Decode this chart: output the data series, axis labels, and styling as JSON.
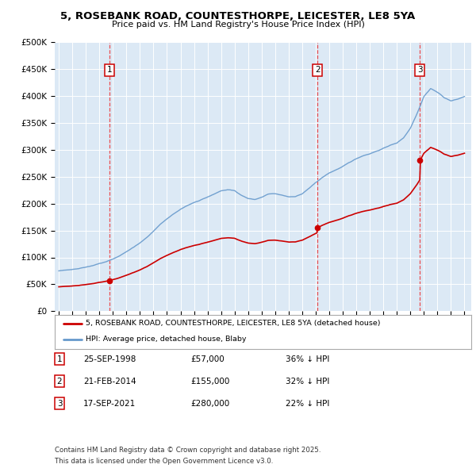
{
  "title": "5, ROSEBANK ROAD, COUNTESTHORPE, LEICESTER, LE8 5YA",
  "subtitle": "Price paid vs. HM Land Registry's House Price Index (HPI)",
  "background_color": "#dce9f5",
  "ylim": [
    0,
    500000
  ],
  "yticks": [
    0,
    50000,
    100000,
    150000,
    200000,
    250000,
    300000,
    350000,
    400000,
    450000,
    500000
  ],
  "ytick_labels": [
    "£0",
    "£50K",
    "£100K",
    "£150K",
    "£200K",
    "£250K",
    "£300K",
    "£350K",
    "£400K",
    "£450K",
    "£500K"
  ],
  "xlim_start": 1994.7,
  "xlim_end": 2025.5,
  "sale_dates": [
    1998.73,
    2014.13,
    2021.71
  ],
  "sale_prices": [
    57000,
    155000,
    280000
  ],
  "sale_labels": [
    "1",
    "2",
    "3"
  ],
  "sale_info": [
    {
      "num": "1",
      "date": "25-SEP-1998",
      "price": "£57,000",
      "hpi": "36% ↓ HPI"
    },
    {
      "num": "2",
      "date": "21-FEB-2014",
      "price": "£155,000",
      "hpi": "32% ↓ HPI"
    },
    {
      "num": "3",
      "date": "17-SEP-2021",
      "price": "£280,000",
      "hpi": "22% ↓ HPI"
    }
  ],
  "legend_red": "5, ROSEBANK ROAD, COUNTESTHORPE, LEICESTER, LE8 5YA (detached house)",
  "legend_blue": "HPI: Average price, detached house, Blaby",
  "footer": "Contains HM Land Registry data © Crown copyright and database right 2025.\nThis data is licensed under the Open Government Licence v3.0.",
  "red_color": "#cc0000",
  "blue_color": "#6699cc",
  "years_hpi": [
    1995,
    1995.5,
    1996,
    1996.5,
    1997,
    1997.5,
    1998,
    1998.5,
    1999,
    1999.5,
    2000,
    2000.5,
    2001,
    2001.5,
    2002,
    2002.5,
    2003,
    2003.5,
    2004,
    2004.5,
    2005,
    2005.5,
    2006,
    2006.5,
    2007,
    2007.5,
    2008,
    2008.5,
    2009,
    2009.5,
    2010,
    2010.5,
    2011,
    2011.5,
    2012,
    2012.5,
    2013,
    2013.5,
    2014,
    2014.5,
    2015,
    2015.5,
    2016,
    2016.5,
    2017,
    2017.5,
    2018,
    2018.5,
    2019,
    2019.5,
    2020,
    2020.5,
    2021,
    2021.5,
    2022,
    2022.5,
    2023,
    2023.5,
    2024,
    2024.5,
    2025
  ],
  "hpi_values": [
    75000,
    76000,
    78000,
    80000,
    83000,
    86000,
    90000,
    93000,
    98000,
    104000,
    112000,
    120000,
    128000,
    138000,
    150000,
    163000,
    173000,
    182000,
    190000,
    197000,
    203000,
    207000,
    212000,
    218000,
    224000,
    226000,
    224000,
    216000,
    210000,
    208000,
    212000,
    218000,
    218000,
    215000,
    212000,
    213000,
    218000,
    228000,
    238000,
    248000,
    256000,
    262000,
    268000,
    275000,
    282000,
    288000,
    292000,
    297000,
    302000,
    308000,
    312000,
    322000,
    340000,
    368000,
    400000,
    415000,
    408000,
    398000,
    392000,
    395000,
    400000
  ]
}
